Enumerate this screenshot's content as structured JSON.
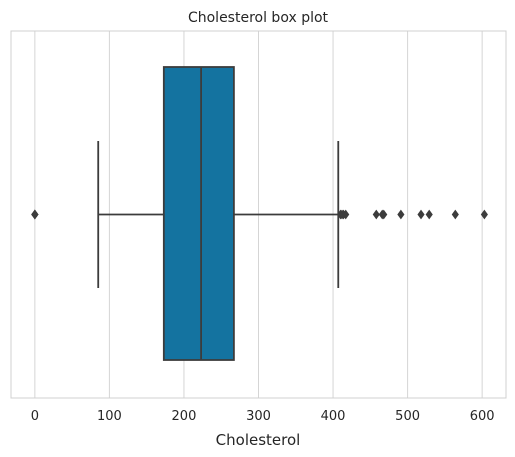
{
  "chart_data": {
    "type": "box",
    "title": "Cholesterol box plot",
    "xlabel": "Cholesterol",
    "ylabel": "",
    "xlim": [
      -32,
      632
    ],
    "xticks": [
      0,
      100,
      200,
      300,
      400,
      500,
      600
    ],
    "xtick_labels": [
      "0",
      "100",
      "200",
      "300",
      "400",
      "500",
      "600"
    ],
    "grid": "x",
    "orientation": "horizontal",
    "box": {
      "whisker_low": 85,
      "q1": 173,
      "median": 223,
      "q3": 267,
      "whisker_high": 407
    },
    "outliers": [
      0,
      0,
      0,
      0,
      410,
      412,
      414,
      417,
      458,
      466,
      468,
      491,
      518,
      529,
      564,
      603
    ],
    "colors": {
      "box_fill": "#1473a0",
      "line": "#3c3c3c",
      "grid": "#d5d5d5",
      "frame": "#d0d0d0",
      "outlier": "#3c3c3c"
    }
  }
}
